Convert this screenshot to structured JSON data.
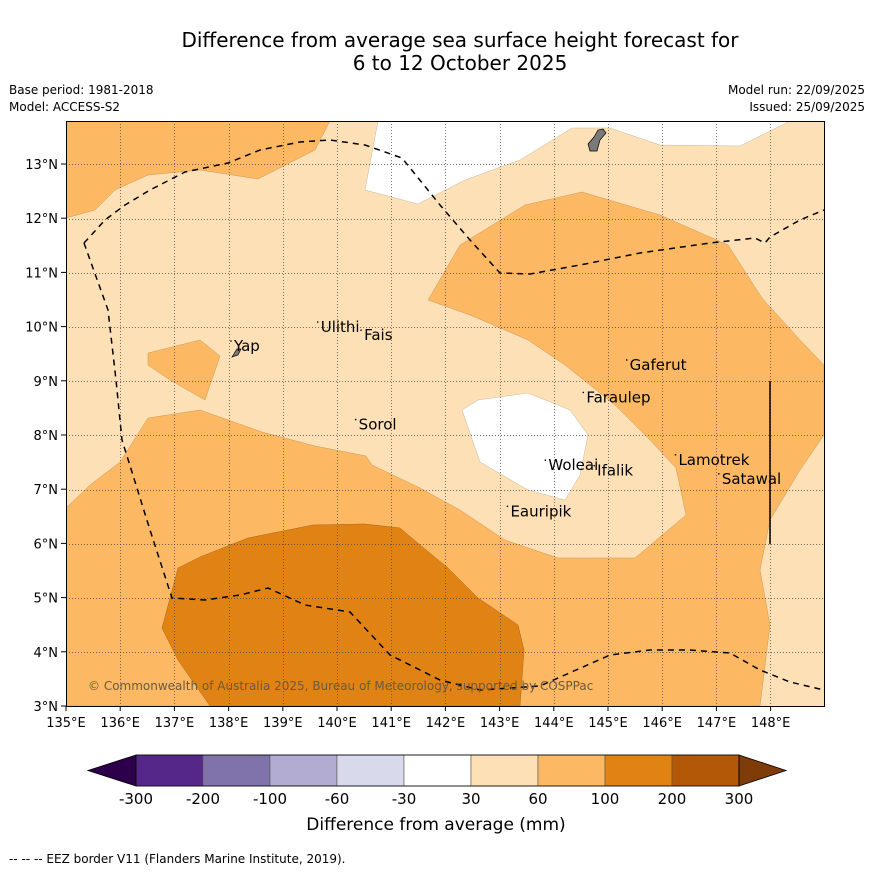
{
  "title_line1": "Difference from average sea surface height forecast for",
  "title_line2": "6 to 12 October 2025",
  "base_period": "Base period: 1981-2018",
  "model": "Model: ACCESS-S2",
  "model_run": "Model run: 22/09/2025",
  "issued": "Issued: 25/09/2025",
  "copyright": "© Commonwealth of Australia 2025, Bureau of Meteorology, supported by COSPPac",
  "footer": "--  --  -- EEZ border V11 (Flanders Marine Institute, 2019).",
  "colorbar": {
    "label": "Difference from average (mm)",
    "ticks": [
      "-300",
      "-200",
      "-100",
      "-60",
      "-30",
      "30",
      "60",
      "100",
      "200",
      "300"
    ],
    "colors": [
      "#542788",
      "#8073ac",
      "#b2abd2",
      "#d8daeb",
      "#ffffff",
      "#fee0b6",
      "#fdb863",
      "#e08214",
      "#b35806"
    ],
    "extend_low_color": "#2d004b",
    "extend_high_color": "#7f3b08"
  },
  "axes": {
    "lon_labels": [
      "135°E",
      "136°E",
      "137°E",
      "138°E",
      "139°E",
      "140°E",
      "141°E",
      "142°E",
      "143°E",
      "144°E",
      "145°E",
      "146°E",
      "147°E",
      "148°E"
    ],
    "lat_labels": [
      "3°N",
      "4°N",
      "5°N",
      "6°N",
      "7°N",
      "8°N",
      "9°N",
      "10°N",
      "11°N",
      "12°N",
      "13°N"
    ]
  },
  "places": [
    {
      "name": "Yap",
      "lon": 138.1,
      "lat": 9.55
    },
    {
      "name": "Ulithi",
      "lon": 139.7,
      "lat": 9.9
    },
    {
      "name": "Fais",
      "lon": 140.5,
      "lat": 9.75
    },
    {
      "name": "Sorol",
      "lon": 140.4,
      "lat": 8.1
    },
    {
      "name": "Gaferut",
      "lon": 145.4,
      "lat": 9.2
    },
    {
      "name": "Faraulep",
      "lon": 144.6,
      "lat": 8.6
    },
    {
      "name": "Woleai",
      "lon": 143.9,
      "lat": 7.35
    },
    {
      "name": "Ifalik",
      "lon": 144.8,
      "lat": 7.25
    },
    {
      "name": "Lamotrek",
      "lon": 146.3,
      "lat": 7.45
    },
    {
      "name": "Satawal",
      "lon": 147.1,
      "lat": 7.1
    },
    {
      "name": "Eauripik",
      "lon": 143.2,
      "lat": 6.5
    }
  ]
}
